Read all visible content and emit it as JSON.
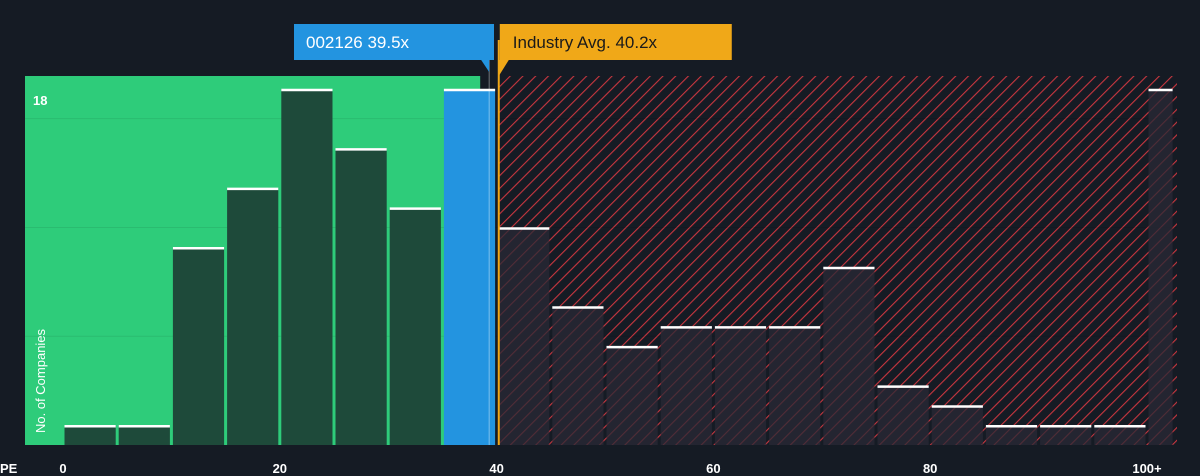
{
  "chart_data": {
    "type": "bar",
    "xlabel": "PE",
    "ylabel": "No. of Companies",
    "x_tick_labels": [
      "0",
      "20",
      "40",
      "60",
      "80",
      "100+"
    ],
    "x_ticks": [
      0,
      20,
      40,
      60,
      80,
      100
    ],
    "xlim": [
      0,
      102.5
    ],
    "ylim": [
      0,
      18
    ],
    "y_max_label": "18",
    "bin_width": 5,
    "bins": [
      {
        "x0": 0,
        "x1": 5,
        "value": 1
      },
      {
        "x0": 5,
        "x1": 10,
        "value": 1
      },
      {
        "x0": 10,
        "x1": 15,
        "value": 10
      },
      {
        "x0": 15,
        "x1": 20,
        "value": 13
      },
      {
        "x0": 20,
        "x1": 25,
        "value": 18
      },
      {
        "x0": 25,
        "x1": 30,
        "value": 15
      },
      {
        "x0": 30,
        "x1": 35,
        "value": 12
      },
      {
        "x0": 35,
        "x1": 40,
        "value": 18
      },
      {
        "x0": 40,
        "x1": 45,
        "value": 11
      },
      {
        "x0": 45,
        "x1": 50,
        "value": 7
      },
      {
        "x0": 50,
        "x1": 55,
        "value": 5
      },
      {
        "x0": 55,
        "x1": 60,
        "value": 6
      },
      {
        "x0": 60,
        "x1": 65,
        "value": 6
      },
      {
        "x0": 65,
        "x1": 70,
        "value": 6
      },
      {
        "x0": 70,
        "x1": 75,
        "value": 9
      },
      {
        "x0": 75,
        "x1": 80,
        "value": 3
      },
      {
        "x0": 80,
        "x1": 85,
        "value": 2
      },
      {
        "x0": 85,
        "x1": 90,
        "value": 1
      },
      {
        "x0": 90,
        "x1": 95,
        "value": 1
      },
      {
        "x0": 95,
        "x1": 100,
        "value": 1
      },
      {
        "x0": 100,
        "x1": 102.5,
        "value": 18
      }
    ],
    "company": {
      "label": "002126 39.5x",
      "value": 39.5
    },
    "industry_avg": {
      "label": "Industry Avg. 40.2x",
      "value": 40.2
    },
    "colors": {
      "background": "#151b24",
      "undervalued_zone": "#2ecc7a",
      "bar_fill": "#1e4a3a",
      "company_bar": "#2394e0",
      "overvalued_hatch": "#c8363f",
      "overvalued_bar": "#2a2a35",
      "industry_avg": "#f0a818",
      "cap": "#ffffff",
      "grid": "#2d3a36"
    }
  }
}
